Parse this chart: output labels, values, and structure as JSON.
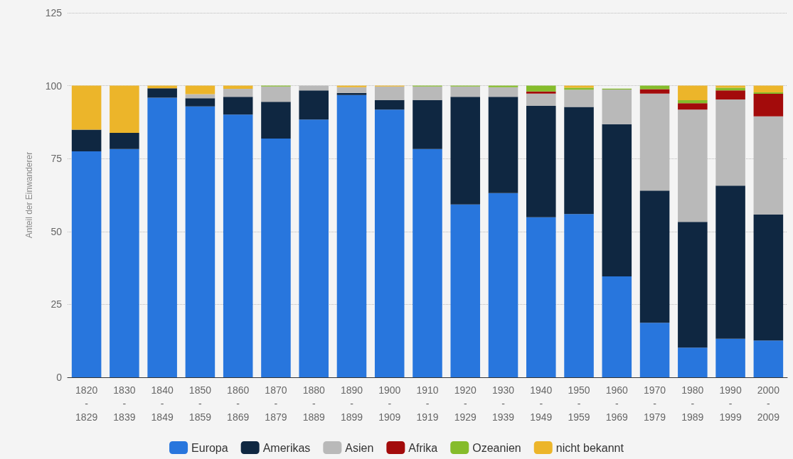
{
  "chart_data": {
    "type": "bar",
    "stacked": true,
    "ylabel": "Anteil der Einwanderer",
    "categories": [
      "1820 - 1829",
      "1830 - 1839",
      "1840 - 1849",
      "1850 - 1859",
      "1860 - 1869",
      "1870 - 1879",
      "1880 - 1889",
      "1890 - 1899",
      "1900 - 1909",
      "1910 - 1919",
      "1920 - 1929",
      "1930 - 1939",
      "1940 - 1949",
      "1950 - 1959",
      "1960 - 1969",
      "1970 - 1979",
      "1980 - 1989",
      "1990 - 1999",
      "2000 - 2009"
    ],
    "series": [
      {
        "name": "Europa",
        "color": "#2876dd",
        "values": [
          77.5,
          78.3,
          95.9,
          92.9,
          90.1,
          81.9,
          88.4,
          96.8,
          91.8,
          78.3,
          59.3,
          63.2,
          54.9,
          56.0,
          34.6,
          18.7,
          10.2,
          13.2,
          12.6
        ]
      },
      {
        "name": "Amerikas",
        "color": "#0f2741",
        "values": [
          7.4,
          5.5,
          3.2,
          2.8,
          6.1,
          12.6,
          10.0,
          0.7,
          3.3,
          16.8,
          36.9,
          33.0,
          38.2,
          36.7,
          52.2,
          45.3,
          43.1,
          52.5,
          43.2
        ]
      },
      {
        "name": "Asien",
        "color": "#b9b9b9",
        "values": [
          0,
          0,
          0,
          1.4,
          2.7,
          5.2,
          1.6,
          2.0,
          4.6,
          4.6,
          3.5,
          3.3,
          4.2,
          5.9,
          11.9,
          33.3,
          38.5,
          29.6,
          33.7
        ]
      },
      {
        "name": "Afrika",
        "color": "#a30b0b",
        "values": [
          0,
          0,
          0,
          0,
          0,
          0,
          0,
          0,
          0,
          0,
          0,
          0,
          0.7,
          0,
          0,
          1.5,
          2.2,
          3.1,
          7.7
        ]
      },
      {
        "name": "Ozeanien",
        "color": "#85bc2b",
        "values": [
          0,
          0,
          0,
          0,
          0,
          0.3,
          0,
          0,
          0,
          0.3,
          0.3,
          0.5,
          2.0,
          0.7,
          0.3,
          1.2,
          1.0,
          0.9,
          0.5
        ]
      },
      {
        "name": "nicht bekannt",
        "color": "#ecb52a",
        "values": [
          15.1,
          16.2,
          0.9,
          2.9,
          1.1,
          0,
          0,
          0.5,
          0.3,
          0,
          0,
          0,
          0,
          0.7,
          0,
          0,
          5.0,
          0.7,
          2.3
        ]
      }
    ],
    "ylim": [
      0,
      125
    ],
    "yticks": [
      0,
      25,
      50,
      75,
      100,
      125
    ],
    "grid": "y",
    "legend": "bottom"
  }
}
